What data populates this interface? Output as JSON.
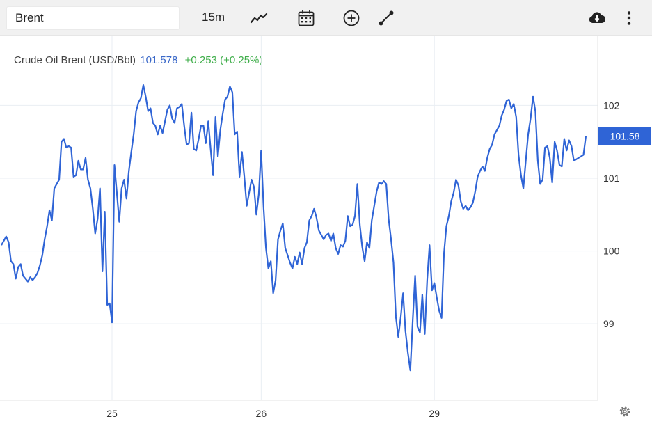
{
  "toolbar": {
    "symbol": "Brent",
    "interval": "15m",
    "icons": [
      "chart-style-icon",
      "calendar-icon",
      "add-indicator-icon",
      "drawing-tool-icon",
      "download-icon",
      "more-options-icon"
    ]
  },
  "legend": {
    "name": "Crude Oil Brent (USD/Bbl)",
    "price": "101.578",
    "change": "+0.253 (+0.25%)"
  },
  "colors": {
    "line": "#2f64d6",
    "price_tag": "#2f64d6",
    "change": "#3fae4a",
    "grid": "#e9eef3"
  },
  "chart_data": {
    "type": "line",
    "title": "Crude Oil Brent (USD/Bbl)",
    "xlabel": "",
    "ylabel": "",
    "ylim": [
      97.95,
      102.95
    ],
    "x_ticks": [
      {
        "label": "25",
        "index": 46
      },
      {
        "label": "26",
        "index": 108
      },
      {
        "label": "29",
        "index": 180
      }
    ],
    "y_ticks": [
      99,
      100,
      101,
      102
    ],
    "last_price_label": "101.58",
    "last_price": 101.578,
    "grid": true,
    "series": [
      {
        "values": [
          100.08,
          100.14,
          100.2,
          100.12,
          99.86,
          99.82,
          99.62,
          99.78,
          99.82,
          99.66,
          99.62,
          99.58,
          99.64,
          99.6,
          99.64,
          99.7,
          99.8,
          99.94,
          100.16,
          100.34,
          100.56,
          100.42,
          100.86,
          100.92,
          100.98,
          101.5,
          101.54,
          101.42,
          101.44,
          101.42,
          101.02,
          101.04,
          101.24,
          101.12,
          101.12,
          101.28,
          100.98,
          100.86,
          100.58,
          100.24,
          100.44,
          100.86,
          99.72,
          100.54,
          99.26,
          99.28,
          99.02,
          101.18,
          100.8,
          100.4,
          100.86,
          100.98,
          100.72,
          101.1,
          101.36,
          101.6,
          101.92,
          102.04,
          102.1,
          102.28,
          102.12,
          101.92,
          101.96,
          101.76,
          101.72,
          101.6,
          101.72,
          101.62,
          101.78,
          101.94,
          102.0,
          101.82,
          101.76,
          101.96,
          101.98,
          102.02,
          101.72,
          101.46,
          101.48,
          101.9,
          101.4,
          101.38,
          101.54,
          101.72,
          101.72,
          101.48,
          101.78,
          101.4,
          101.04,
          101.84,
          101.3,
          101.66,
          101.88,
          102.08,
          102.12,
          102.26,
          102.18,
          101.6,
          101.64,
          101.02,
          101.36,
          101.02,
          100.62,
          100.8,
          100.98,
          100.88,
          100.5,
          100.78,
          101.38,
          100.6,
          100.04,
          99.76,
          99.86,
          99.42,
          99.6,
          100.16,
          100.28,
          100.38,
          100.04,
          99.94,
          99.84,
          99.76,
          99.92,
          99.82,
          99.98,
          99.82,
          100.04,
          100.12,
          100.42,
          100.48,
          100.58,
          100.46,
          100.28,
          100.22,
          100.16,
          100.22,
          100.24,
          100.14,
          100.24,
          100.04,
          99.96,
          100.08,
          100.06,
          100.14,
          100.48,
          100.34,
          100.36,
          100.48,
          100.92,
          100.36,
          100.06,
          99.86,
          100.12,
          100.04,
          100.42,
          100.62,
          100.82,
          100.94,
          100.92,
          100.96,
          100.92,
          100.44,
          100.16,
          99.84,
          99.1,
          98.82,
          99.08,
          99.42,
          98.9,
          98.6,
          98.36,
          99.04,
          99.66,
          98.96,
          98.88,
          99.4,
          98.86,
          99.6,
          100.08,
          99.46,
          99.56,
          99.36,
          99.18,
          99.08,
          99.96,
          100.34,
          100.48,
          100.68,
          100.8,
          100.98,
          100.9,
          100.68,
          100.58,
          100.62,
          100.56,
          100.6,
          100.66,
          100.82,
          101.02,
          101.1,
          101.16,
          101.1,
          101.28,
          101.4,
          101.46,
          101.6,
          101.66,
          101.72,
          101.86,
          101.94,
          102.06,
          102.08,
          101.96,
          102.02,
          101.84,
          101.32,
          101.04,
          100.86,
          101.24,
          101.6,
          101.82,
          102.12,
          101.92,
          101.24,
          100.92,
          100.98,
          101.42,
          101.44,
          101.28,
          100.94,
          101.5,
          101.38,
          101.18,
          101.16,
          101.54,
          101.38,
          101.52,
          101.44,
          101.24,
          101.26,
          101.28,
          101.3,
          101.32,
          101.58
        ]
      }
    ]
  }
}
